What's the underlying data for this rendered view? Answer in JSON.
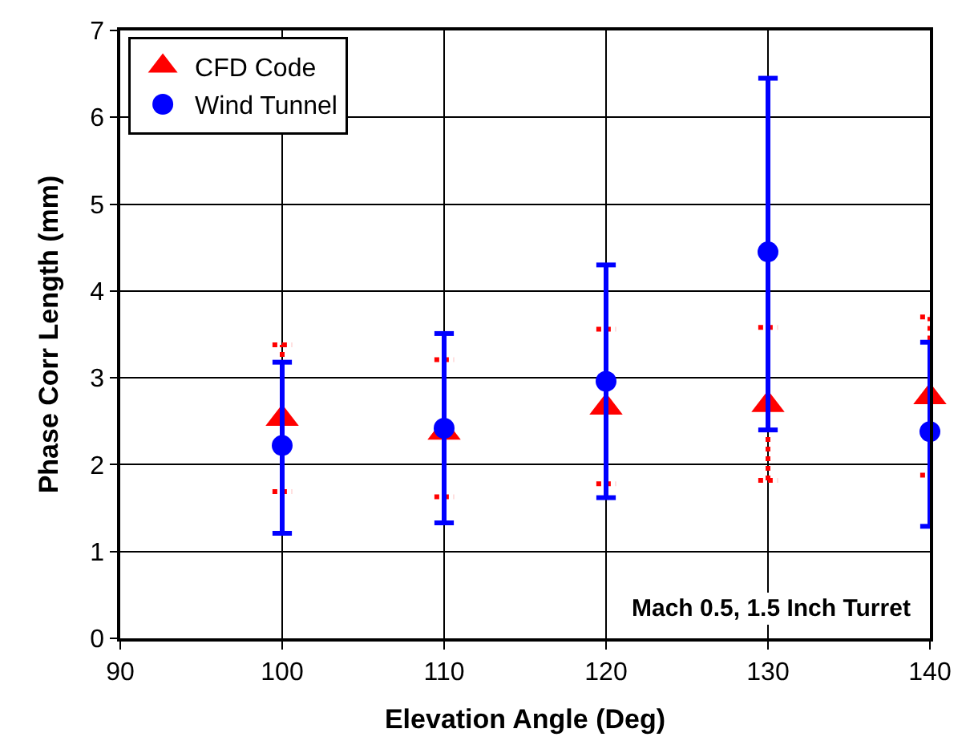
{
  "chart_data": {
    "type": "scatter",
    "xlabel": "Elevation Angle (Deg)",
    "ylabel": "Phase Corr Length (mm)",
    "x": [
      100,
      110,
      120,
      130,
      140
    ],
    "series": [
      {
        "name": "CFD Code",
        "color": "#ff0000",
        "marker": "triangle",
        "line_style": "dotted",
        "values": [
          2.53,
          2.37,
          2.66,
          2.69,
          2.78
        ],
        "errors": [
          [
            1.69,
            3.38
          ],
          [
            1.63,
            3.21
          ],
          [
            1.78,
            3.56
          ],
          [
            1.82,
            3.58
          ],
          [
            1.88,
            3.7
          ]
        ]
      },
      {
        "name": "Wind Tunnel",
        "color": "#0000ff",
        "marker": "circle",
        "line_style": "solid",
        "values": [
          2.22,
          2.42,
          2.96,
          4.45,
          2.38
        ],
        "errors": [
          [
            1.21,
            3.18
          ],
          [
            1.33,
            3.51
          ],
          [
            1.62,
            4.3
          ],
          [
            2.4,
            6.45
          ],
          [
            1.29,
            3.41
          ]
        ]
      }
    ],
    "xlim": [
      90,
      140
    ],
    "xticks": [
      90,
      100,
      110,
      120,
      130,
      140
    ],
    "ylim": [
      0,
      7
    ],
    "yticks": [
      0,
      1,
      2,
      3,
      4,
      5,
      6,
      7
    ],
    "grid": true,
    "legend": "top left",
    "annotations": [
      "Mach 0.5, 1.5 Inch Turret"
    ]
  }
}
